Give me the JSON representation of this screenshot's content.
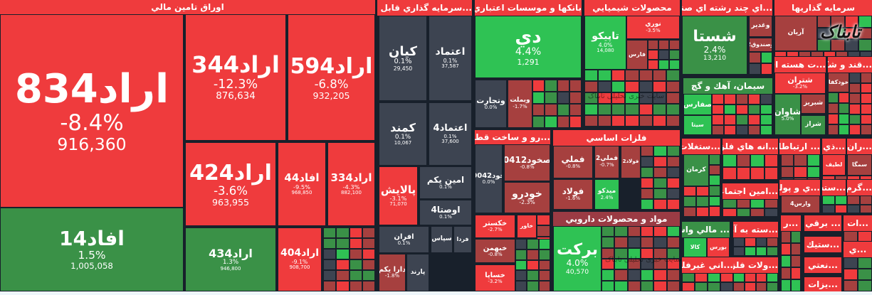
{
  "logo": "تابناک",
  "watermark": "سایت خبری تحلیلی تابناک",
  "colors": {
    "red": "#ef3b3d",
    "dark_red": "#a6403f",
    "green": "#2fc254",
    "dark_green": "#3a9147",
    "gray": "#3d4451",
    "background": "#18202b"
  },
  "sectors": [
    "اوراق تامين مالي",
    "...سرمايه گذاري قابل معامله",
    "بانكها و موسسات اعتباري",
    "محصولات شيميايي",
    "...اي چند رشته اي صنعتي",
    "سرمايه گذاريها",
    "...ت هسته اي",
    "...قند و شكر",
    "سيمان، آهك و گچ",
    "...رو و ساخت قطعات",
    "فلزات اساسي",
    "مواد و محصولات دارويي",
    "...ستغلات",
    "...انه هاي فلزي",
    "... ارتباطات",
    "...ذي",
    "...ران",
    "...امين اجتماعي",
    "...ي و پولي",
    "...سته",
    "...گرم",
    "... مالي واسط",
    "...سته به آن",
    "...اني غيرفلزي",
    "...ولات فلزي",
    "...ر",
    "... برقي",
    "...ات",
    "...ي",
    "...ستيك",
    "...نعتي",
    "...يزات"
  ],
  "tiles": [
    {
      "symbol": "اراد834",
      "change": "-8.4%",
      "value": "916,360",
      "color": "red"
    },
    {
      "symbol": "افاد14",
      "change": "1.5%",
      "value": "1,005,058",
      "color": "dark_green"
    },
    {
      "symbol": "اراد344",
      "change": "-12.3%",
      "value": "876,634",
      "color": "red"
    },
    {
      "symbol": "اراد594",
      "change": "-6.8%",
      "value": "932,205",
      "color": "red"
    },
    {
      "symbol": "اراد424",
      "change": "-3.6%",
      "value": "963,955",
      "color": "red"
    },
    {
      "symbol": "افاد44",
      "change": "-9.5%",
      "value": "968,850",
      "color": "red"
    },
    {
      "symbol": "اراد334",
      "change": "-4.3%",
      "value": "882,100",
      "color": "red"
    },
    {
      "symbol": "اراد434",
      "change": "1.3%",
      "value": "946,800",
      "color": "dark_green"
    },
    {
      "symbol": "اراد404",
      "change": "-9.1%",
      "value": "908,700",
      "color": "red"
    },
    {
      "symbol": "كيان",
      "change": "0.1%",
      "value": "29,450",
      "color": "gray"
    },
    {
      "symbol": "اعتماد",
      "change": "0.1%",
      "value": "37,587",
      "color": "gray"
    },
    {
      "symbol": "كمند",
      "change": "0.1%",
      "value": "10,067",
      "color": "gray"
    },
    {
      "symbol": "اعتماد4",
      "change": "0.1%",
      "value": "37,600",
      "color": "gray"
    },
    {
      "symbol": "پالايش",
      "change": "-3.1%",
      "value": "71,070",
      "color": "red"
    },
    {
      "symbol": "امين يكم",
      "change": "0.1%",
      "value": "",
      "color": "gray"
    },
    {
      "symbol": "اوصتا4",
      "change": "0.1%",
      "value": "",
      "color": "gray"
    },
    {
      "symbol": "افران",
      "change": "0.1%",
      "value": "",
      "color": "gray"
    },
    {
      "symbol": "سپاس",
      "change": "",
      "value": "",
      "color": "gray"
    },
    {
      "symbol": "فردا",
      "change": "",
      "value": "",
      "color": "gray"
    },
    {
      "symbol": "دارا يكم",
      "change": "-1.8%",
      "value": "",
      "color": "dark_red"
    },
    {
      "symbol": "پارند",
      "change": "",
      "value": "",
      "color": "gray"
    },
    {
      "symbol": "دي",
      "change": "4.4%",
      "value": "1,291",
      "color": "green"
    },
    {
      "symbol": "وتجارت",
      "change": "0.0%",
      "value": "",
      "color": "gray"
    },
    {
      "symbol": "وبملت",
      "change": "-1.7%",
      "value": "",
      "color": "dark_red"
    },
    {
      "symbol": "تاپيكو",
      "change": "4.0%",
      "value": "14,080",
      "color": "green"
    },
    {
      "symbol": "نوري",
      "change": "-3.5%",
      "value": "",
      "color": "red"
    },
    {
      "symbol": "فارس",
      "change": "",
      "value": "",
      "color": "dark_red"
    },
    {
      "symbol": "شستا",
      "change": "2.4%",
      "value": "13,210",
      "color": "dark_green"
    },
    {
      "symbol": "وغدير",
      "change": "",
      "value": "",
      "color": "dark_red"
    },
    {
      "symbol": "وصندوق2",
      "change": "",
      "value": "",
      "color": "dark_red"
    },
    {
      "symbol": "آريان",
      "change": "",
      "value": "",
      "color": "dark_red"
    },
    {
      "symbol": "شتران",
      "change": "-3.2%",
      "value": "",
      "color": "red"
    },
    {
      "symbol": "شبريز",
      "change": "",
      "value": "",
      "color": "dark_red"
    },
    {
      "symbol": "شاوان",
      "change": "5.0%",
      "value": "",
      "color": "dark_green"
    },
    {
      "symbol": "شراز",
      "change": "",
      "value": "",
      "color": "dark_green"
    },
    {
      "symbol": "خودكفا",
      "change": "",
      "value": "",
      "color": "dark_red"
    },
    {
      "symbol": "صفارس",
      "change": "",
      "value": "",
      "color": "green"
    },
    {
      "symbol": "سيتا",
      "change": "",
      "value": "",
      "color": "green"
    },
    {
      "symbol": "خود0042",
      "change": "0.0%",
      "value": "",
      "color": "gray"
    },
    {
      "symbol": "صخود0412",
      "change": "-0.8%",
      "value": "",
      "color": "dark_red"
    },
    {
      "symbol": "خودرو",
      "change": "-2.3%",
      "value": "",
      "color": "dark_red"
    },
    {
      "symbol": "خكستر",
      "change": "-2.7%",
      "value": "",
      "color": "red"
    },
    {
      "symbol": "خاور",
      "change": "",
      "value": "",
      "color": "red"
    },
    {
      "symbol": "خبهمن",
      "change": "-0.8%",
      "value": "",
      "color": "dark_red"
    },
    {
      "symbol": "خساپا",
      "change": "-3.2%",
      "value": "",
      "color": "red"
    },
    {
      "symbol": "فملي",
      "change": "-0.8%",
      "value": "",
      "color": "dark_red"
    },
    {
      "symbol": "فملي2",
      "change": "-0.7%",
      "value": "",
      "color": "dark_red"
    },
    {
      "symbol": "فولاد2",
      "change": "",
      "value": "",
      "color": "dark_red"
    },
    {
      "symbol": "فولاد",
      "change": "-1.6%",
      "value": "",
      "color": "dark_red"
    },
    {
      "symbol": "ميدكو",
      "change": "2.4%",
      "value": "",
      "color": "green"
    },
    {
      "symbol": "بركت",
      "change": "4.0%",
      "value": "40,570",
      "color": "green"
    },
    {
      "symbol": "كرمان",
      "change": "",
      "value": "",
      "color": "dark_green"
    },
    {
      "symbol": "لطيف",
      "change": "",
      "value": "",
      "color": "red"
    },
    {
      "symbol": "سمگا",
      "change": "",
      "value": "",
      "color": "dark_red"
    },
    {
      "symbol": "وارس4",
      "change": "",
      "value": "",
      "color": "dark_red"
    },
    {
      "symbol": "كالا",
      "change": "",
      "value": "",
      "color": "green"
    },
    {
      "symbol": "بورس",
      "change": "",
      "value": "",
      "color": "red"
    }
  ]
}
